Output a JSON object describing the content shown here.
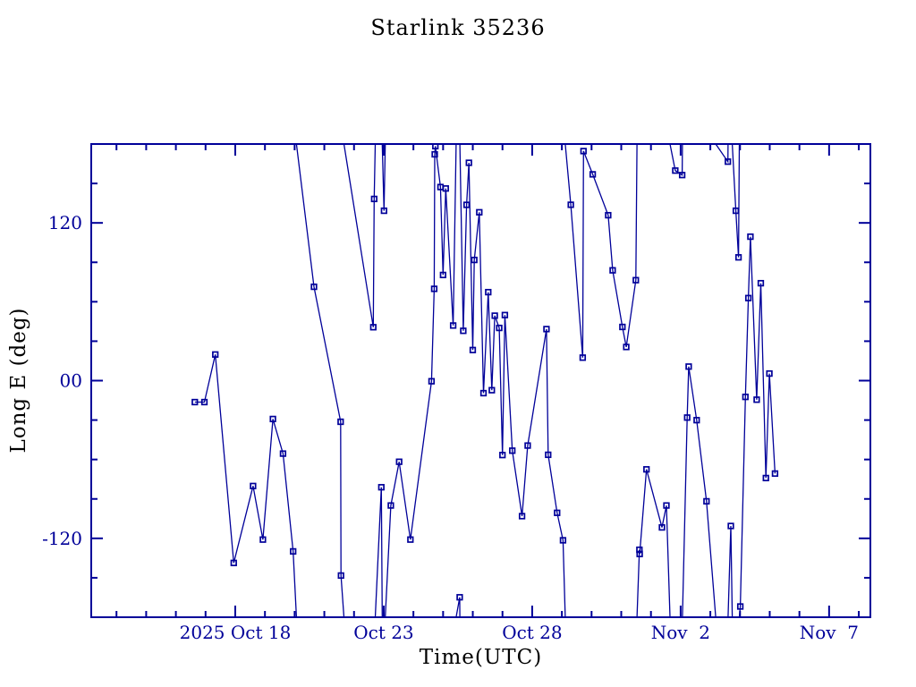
{
  "colors": {
    "ink": "#000099",
    "background": "#ffffff"
  },
  "chart_data": {
    "type": "line",
    "title": "Starlink 35236",
    "xlabel": "Time(UTC)",
    "ylabel": "Long E (deg)",
    "legend": "none",
    "grid": false,
    "marker": "open-square",
    "wrap_at_deg": 180,
    "x_axis": {
      "units": "days since 2025-10-13 00:00 UTC",
      "range": [
        0.15,
        26.39
      ],
      "major_ticks": [
        {
          "d": 5,
          "label": "2025 Oct 18"
        },
        {
          "d": 10,
          "label": "Oct 23"
        },
        {
          "d": 15,
          "label": "Oct 28"
        },
        {
          "d": 20,
          "label": "Nov  2"
        },
        {
          "d": 25,
          "label": "Nov  7"
        }
      ],
      "minor_ticks": [
        1,
        2,
        3,
        4,
        6,
        7,
        8,
        9,
        11,
        12,
        13,
        14,
        16,
        17,
        18,
        19,
        21,
        22,
        23,
        24,
        26
      ]
    },
    "y_axis": {
      "units": "deg east longitude",
      "range": [
        -180,
        180
      ],
      "major_ticks": [
        {
          "v": 120,
          "label": "120"
        },
        {
          "v": 0,
          "label": "00"
        },
        {
          "v": -120,
          "label": "-120"
        }
      ],
      "minor_ticks": [
        -150,
        -90,
        -60,
        -30,
        30,
        60,
        90,
        150
      ]
    },
    "series": [
      {
        "name": "longitude-east",
        "points": [
          [
            3.64,
            -16.3
          ],
          [
            3.96,
            -16.3
          ],
          [
            4.33,
            19.9
          ],
          [
            4.95,
            -138.7
          ],
          [
            5.6,
            -80.2
          ],
          [
            5.93,
            -120.9
          ],
          [
            6.27,
            -29.2
          ],
          [
            6.61,
            -55.5
          ],
          [
            6.95,
            -129.9
          ],
          [
            7.65,
            71.4
          ],
          [
            8.55,
            -31.3
          ],
          [
            8.56,
            -148.3
          ],
          [
            9.65,
            40.6
          ],
          [
            9.68,
            138.2
          ],
          [
            9.92,
            -81.1
          ],
          [
            10.01,
            129.2
          ],
          [
            10.24,
            -95.0
          ],
          [
            10.52,
            -61.7
          ],
          [
            10.9,
            -120.9
          ],
          [
            11.61,
            -0.5
          ],
          [
            11.7,
            69.8
          ],
          [
            11.72,
            172.2
          ],
          [
            11.74,
            178.4
          ],
          [
            11.91,
            147.3
          ],
          [
            12.0,
            80.4
          ],
          [
            12.09,
            146.2
          ],
          [
            12.34,
            41.9
          ],
          [
            12.56,
            -164.8
          ],
          [
            12.68,
            37.9
          ],
          [
            12.79,
            133.7
          ],
          [
            12.87,
            165.7
          ],
          [
            13.0,
            23.3
          ],
          [
            13.05,
            91.8
          ],
          [
            13.22,
            128.1
          ],
          [
            13.36,
            -9.5
          ],
          [
            13.52,
            67.3
          ],
          [
            13.64,
            -7.3
          ],
          [
            13.74,
            49.4
          ],
          [
            13.89,
            40.1
          ],
          [
            14.0,
            -56.6
          ],
          [
            14.08,
            49.9
          ],
          [
            14.33,
            -53.3
          ],
          [
            14.66,
            -103.1
          ],
          [
            14.85,
            -49.4
          ],
          [
            15.48,
            39.2
          ],
          [
            15.54,
            -56.4
          ],
          [
            15.84,
            -100.6
          ],
          [
            16.04,
            -121.5
          ],
          [
            16.3,
            133.8
          ],
          [
            16.7,
            17.5
          ],
          [
            16.73,
            174.6
          ],
          [
            17.04,
            156.9
          ],
          [
            17.56,
            125.8
          ],
          [
            17.71,
            83.9
          ],
          [
            18.04,
            40.8
          ],
          [
            18.17,
            25.6
          ],
          [
            18.49,
            76.4
          ],
          [
            18.61,
            -128.7
          ],
          [
            18.62,
            -131.9
          ],
          [
            18.85,
            -67.5
          ],
          [
            19.37,
            -111.7
          ],
          [
            19.52,
            -95.0
          ],
          [
            19.82,
            159.8
          ],
          [
            20.05,
            156.4
          ],
          [
            20.22,
            -28.1
          ],
          [
            20.27,
            10.7
          ],
          [
            20.54,
            -30.1
          ],
          [
            20.87,
            -91.8
          ],
          [
            21.59,
            166.6
          ],
          [
            21.69,
            -110.6
          ],
          [
            21.86,
            129.2
          ],
          [
            21.95,
            93.8
          ],
          [
            22.01,
            -171.8
          ],
          [
            22.18,
            -12.4
          ],
          [
            22.28,
            62.8
          ],
          [
            22.35,
            109.5
          ],
          [
            22.56,
            -14.5
          ],
          [
            22.7,
            74.1
          ],
          [
            22.87,
            -74.1
          ],
          [
            22.99,
            5.4
          ],
          [
            23.18,
            -70.7
          ]
        ]
      }
    ]
  }
}
